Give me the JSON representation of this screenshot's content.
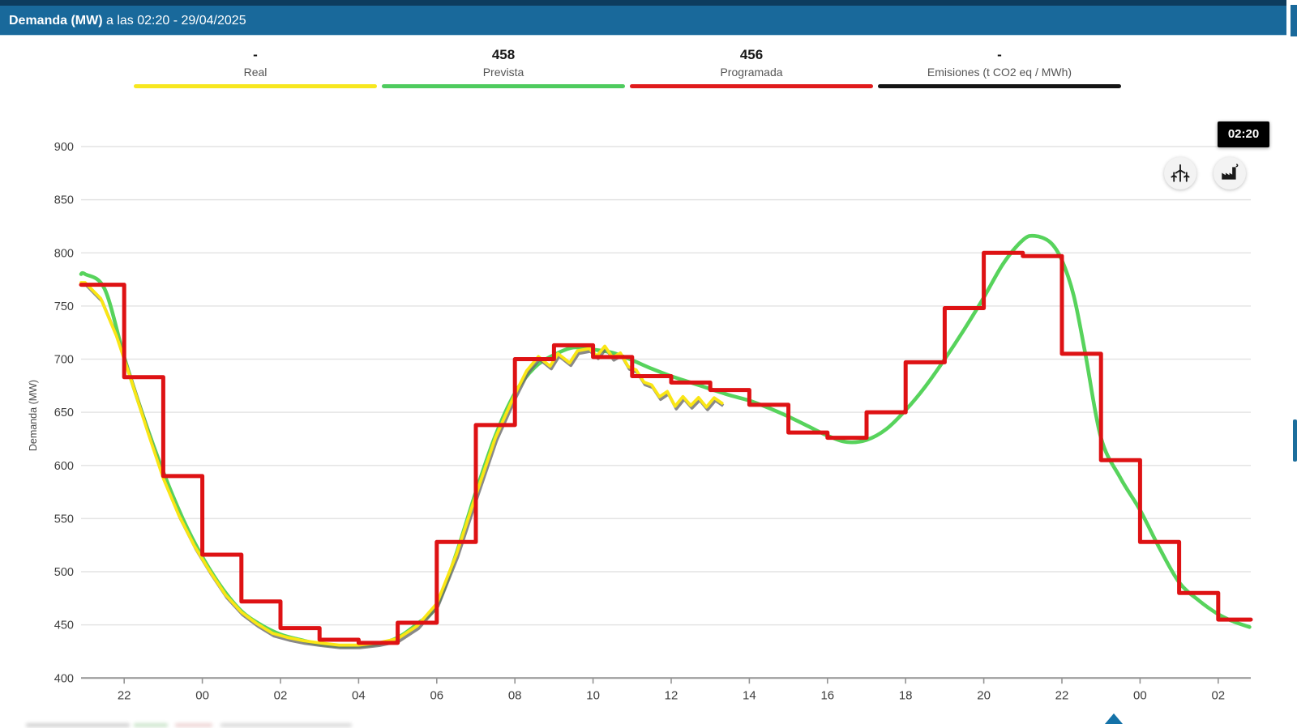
{
  "header": {
    "title_bold": "Demanda (MW)",
    "title_rest": " a las 02:20 - 29/04/2025"
  },
  "legend": [
    {
      "value": "-",
      "label": "Real",
      "color": "#f7e71f"
    },
    {
      "value": "458",
      "label": "Prevista",
      "color": "#4ecb5e"
    },
    {
      "value": "456",
      "label": "Programada",
      "color": "#e01b1c"
    },
    {
      "value": "-",
      "label": "Emisiones (t CO2 eq / MWh)",
      "color": "#141414"
    }
  ],
  "tooltip": {
    "time": "02:20"
  },
  "colors": {
    "header_bg": "#19699b",
    "accent_blue": "#1472a8",
    "real": "#fae615",
    "prevista": "#57d35c",
    "programada": "#de1214",
    "emisiones": "#141414"
  },
  "chart_data": {
    "type": "line",
    "title": "Demanda (MW) a las 02:20 - 29/04/2025",
    "xlabel": "",
    "ylabel": "Demanda (MW)",
    "ylim": [
      400,
      900
    ],
    "ystep": 50,
    "grid": "horizontal",
    "legend_position": "top",
    "x_axis": {
      "first_tick_hour": 1,
      "tick_step_hours": 2,
      "hours_span": 29.8,
      "tick_labels": [
        "22",
        "00",
        "02",
        "04",
        "06",
        "08",
        "10",
        "12",
        "14",
        "16",
        "18",
        "20",
        "22",
        "00",
        "02"
      ]
    },
    "series": [
      {
        "name": "Prevista",
        "color": "#57d35c",
        "style": "smooth",
        "points": [
          [
            0,
            780
          ],
          [
            0.5,
            766
          ],
          [
            1,
            702
          ],
          [
            1.5,
            645
          ],
          [
            2,
            594
          ],
          [
            2.5,
            550
          ],
          [
            3,
            514
          ],
          [
            3.5,
            485
          ],
          [
            4,
            463
          ],
          [
            4.5,
            450
          ],
          [
            5,
            441
          ],
          [
            5.5,
            436
          ],
          [
            6,
            432
          ],
          [
            6.5,
            430
          ],
          [
            7,
            430
          ],
          [
            7.5,
            432
          ],
          [
            8,
            438
          ],
          [
            8.5,
            451
          ],
          [
            9,
            468
          ],
          [
            9.5,
            517
          ],
          [
            10,
            575
          ],
          [
            10.5,
            628
          ],
          [
            11,
            668
          ],
          [
            11.5,
            692
          ],
          [
            12,
            704
          ],
          [
            12.5,
            711
          ],
          [
            13,
            709
          ],
          [
            13.5,
            706
          ],
          [
            14,
            699
          ],
          [
            14.5,
            691
          ],
          [
            15,
            684
          ],
          [
            15.5,
            678
          ],
          [
            16,
            672
          ],
          [
            16.5,
            666
          ],
          [
            17,
            661
          ],
          [
            17.5,
            654
          ],
          [
            18,
            646
          ],
          [
            18.5,
            637
          ],
          [
            19,
            628
          ],
          [
            19.5,
            622
          ],
          [
            20,
            624
          ],
          [
            20.5,
            634
          ],
          [
            21,
            652
          ],
          [
            21.5,
            674
          ],
          [
            22,
            700
          ],
          [
            22.5,
            728
          ],
          [
            23,
            758
          ],
          [
            23.5,
            790
          ],
          [
            24,
            812
          ],
          [
            24.3,
            816
          ],
          [
            24.7,
            810
          ],
          [
            25,
            793
          ],
          [
            25.3,
            760
          ],
          [
            25.6,
            705
          ],
          [
            26,
            626
          ],
          [
            26.5,
            588
          ],
          [
            27,
            558
          ],
          [
            27.5,
            522
          ],
          [
            28,
            490
          ],
          [
            28.5,
            473
          ],
          [
            29,
            460
          ],
          [
            29.4,
            453
          ],
          [
            29.8,
            448
          ]
        ]
      },
      {
        "name": "Real",
        "color": "#fae615",
        "style": "noisy",
        "shadow": true,
        "points": [
          [
            0,
            772
          ],
          [
            0.4,
            757
          ],
          [
            0.8,
            722
          ],
          [
            1.2,
            678
          ],
          [
            1.6,
            632
          ],
          [
            2,
            588
          ],
          [
            2.4,
            553
          ],
          [
            2.8,
            524
          ],
          [
            3.2,
            500
          ],
          [
            3.6,
            478
          ],
          [
            4,
            462
          ],
          [
            4.4,
            451
          ],
          [
            4.8,
            442
          ],
          [
            5.2,
            438
          ],
          [
            5.6,
            435
          ],
          [
            6,
            433
          ],
          [
            6.5,
            431
          ],
          [
            7,
            431
          ],
          [
            7.5,
            433
          ],
          [
            8,
            437
          ],
          [
            8.5,
            449
          ],
          [
            9,
            470
          ],
          [
            9.5,
            516
          ],
          [
            10,
            572
          ],
          [
            10.5,
            626
          ],
          [
            11,
            667
          ],
          [
            11.3,
            689
          ],
          [
            11.6,
            698
          ],
          [
            11.9,
            694
          ],
          [
            12.1,
            701
          ],
          [
            12.4,
            697
          ],
          [
            12.6,
            706
          ],
          [
            12.9,
            711
          ],
          [
            13.1,
            703
          ],
          [
            13.3,
            708
          ],
          [
            13.5,
            701
          ],
          [
            13.7,
            706
          ],
          [
            13.9,
            697
          ],
          [
            14.1,
            690
          ],
          [
            14.3,
            678
          ],
          [
            14.5,
            672
          ],
          [
            14.7,
            665
          ],
          [
            14.9,
            670
          ],
          [
            15.1,
            659
          ],
          [
            15.3,
            664
          ],
          [
            15.5,
            656
          ],
          [
            15.7,
            661
          ],
          [
            15.9,
            656
          ],
          [
            16.1,
            664
          ],
          [
            16.3,
            661
          ]
        ]
      },
      {
        "name": "Programada",
        "color": "#de1214",
        "style": "step",
        "step_start_hour": 0,
        "end_hour": 29.8,
        "values": [
          770,
          683,
          590,
          516,
          472,
          447,
          436,
          433,
          452,
          528,
          638,
          700,
          713,
          702,
          684,
          678,
          671,
          657,
          631,
          626,
          650,
          697,
          748,
          800,
          797,
          705,
          605,
          528,
          480,
          455
        ]
      },
      {
        "name": "Emisiones (t CO2 eq / MWh)",
        "color": "#141414",
        "style": "none",
        "points": []
      }
    ]
  }
}
